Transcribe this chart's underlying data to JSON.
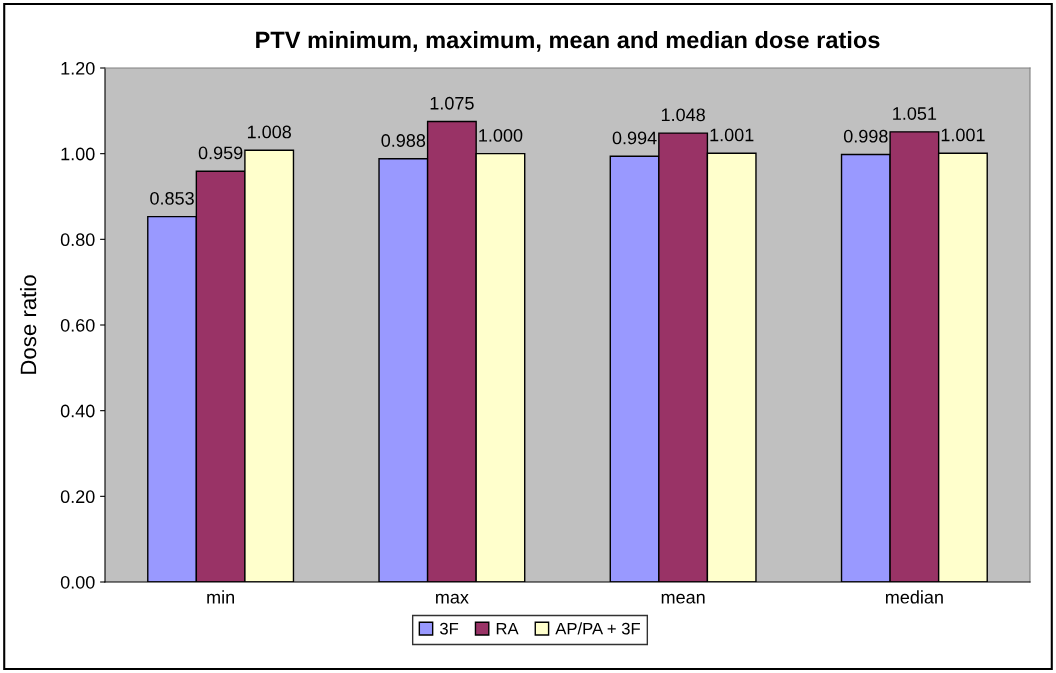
{
  "chart_data": {
    "type": "bar",
    "title": "PTV minimum, maximum, mean and median dose ratios",
    "ylabel": "Dose ratio",
    "categories": [
      "min",
      "max",
      "mean",
      "median"
    ],
    "series": [
      {
        "name": "3F",
        "color": "#9999ff",
        "values": [
          0.853,
          0.988,
          0.994,
          0.998
        ],
        "value_labels": [
          "0.853",
          "0.988",
          "0.994",
          "0.998"
        ]
      },
      {
        "name": "RA",
        "color": "#993366",
        "values": [
          0.959,
          1.075,
          1.048,
          1.051
        ],
        "value_labels": [
          "0.959",
          "1.075",
          "1.048",
          "1.051"
        ]
      },
      {
        "name": "AP/PA + 3F",
        "color": "#ffffcc",
        "values": [
          1.008,
          1.0,
          1.001,
          1.001
        ],
        "value_labels": [
          "1.008",
          "1.000",
          "1.001",
          "1.001"
        ]
      }
    ],
    "ylim": [
      0,
      1.2
    ],
    "yticks": [
      {
        "value": 0,
        "label": "0.00"
      },
      {
        "value": 0.2,
        "label": "0.20"
      },
      {
        "value": 0.4,
        "label": "0.40"
      },
      {
        "value": 0.6,
        "label": "0.60"
      },
      {
        "value": 0.8,
        "label": "0.80"
      },
      {
        "value": 1.0,
        "label": "1.00"
      },
      {
        "value": 1.2,
        "label": "1.20"
      }
    ],
    "legend": "bottom"
  }
}
